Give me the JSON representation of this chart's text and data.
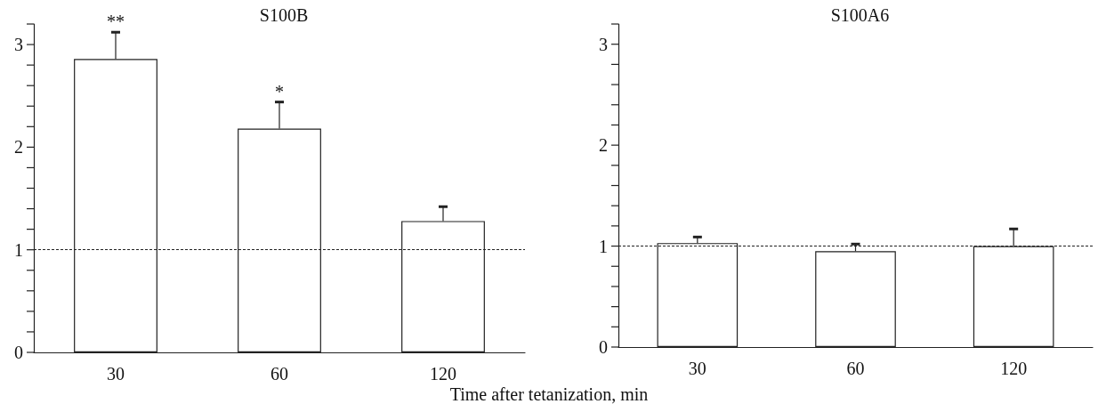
{
  "chart_data": [
    {
      "type": "bar",
      "title": "S100B",
      "xlabel": "Time after tetanization, min",
      "categories": [
        "30",
        "60",
        "120"
      ],
      "values": [
        2.86,
        2.18,
        1.28
      ],
      "errors": [
        [
          2.86,
          3.12
        ],
        [
          2.18,
          2.44
        ],
        [
          1.28,
          1.42
        ]
      ],
      "color": "#ffffff",
      "ylim": [
        0,
        3.2
      ],
      "yticks": [
        0,
        {
          "value": 0.2,
          "label": null
        },
        {
          "value": 0.4,
          "label": null
        },
        {
          "value": 0.6,
          "label": null
        },
        {
          "value": 0.8,
          "label": null
        },
        1,
        {
          "value": 1.2,
          "label": null
        },
        {
          "value": 1.4,
          "label": null
        },
        {
          "value": 1.6,
          "label": null
        },
        {
          "value": 1.8,
          "label": null
        },
        2,
        {
          "value": 2.2,
          "label": null
        },
        {
          "value": 2.4,
          "label": null
        },
        {
          "value": 2.6,
          "label": null
        },
        {
          "value": 2.8,
          "label": null
        },
        3,
        {
          "value": 3.2,
          "label": null
        }
      ],
      "ref_lines": [
        {
          "axis": "y",
          "value": 1,
          "line_style": "dashed"
        }
      ],
      "annotations": [
        {
          "text": "**",
          "x": "30",
          "y": 3.12
        },
        {
          "text": "*",
          "x": "60",
          "y": 2.44
        }
      ],
      "grid": false
    },
    {
      "type": "bar",
      "title": "S100A6",
      "categories": [
        "30",
        "60",
        "120"
      ],
      "values": [
        1.03,
        0.95,
        1.0
      ],
      "errors": [
        [
          1.03,
          1.09
        ],
        [
          0.95,
          1.02
        ],
        [
          1.0,
          1.17
        ]
      ],
      "color": "#ffffff",
      "ylim": [
        0,
        3.2
      ],
      "yticks": [
        0,
        {
          "value": 0.2,
          "label": null
        },
        {
          "value": 0.4,
          "label": null
        },
        {
          "value": 0.6,
          "label": null
        },
        {
          "value": 0.8,
          "label": null
        },
        1,
        {
          "value": 1.2,
          "label": null
        },
        {
          "value": 1.4,
          "label": null
        },
        {
          "value": 1.6,
          "label": null
        },
        {
          "value": 1.8,
          "label": null
        },
        2,
        {
          "value": 2.2,
          "label": null
        },
        {
          "value": 2.4,
          "label": null
        },
        {
          "value": 2.6,
          "label": null
        },
        {
          "value": 2.8,
          "label": null
        },
        3,
        {
          "value": 3.2,
          "label": null
        }
      ],
      "ref_lines": [
        {
          "axis": "y",
          "value": 1,
          "line_style": "dashed"
        }
      ],
      "grid": false
    }
  ]
}
